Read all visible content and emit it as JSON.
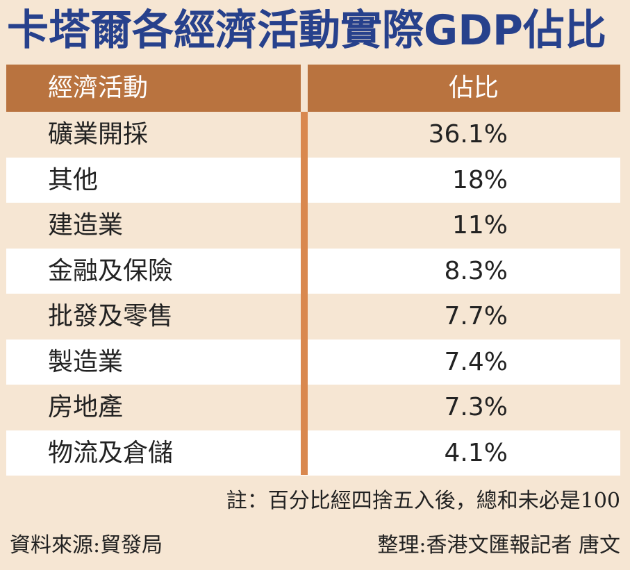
{
  "title": "卡塔爾各經濟活動實際GDP佔比",
  "table": {
    "headers": [
      "經濟活動",
      "佔比"
    ],
    "rows": [
      {
        "activity": "礦業開採",
        "share": "36.1%"
      },
      {
        "activity": "其他",
        "share": "18%"
      },
      {
        "activity": "建造業",
        "share": "11%"
      },
      {
        "activity": "金融及保險",
        "share": "8.3%"
      },
      {
        "activity": "批發及零售",
        "share": "7.7%"
      },
      {
        "activity": "製造業",
        "share": "7.4%"
      },
      {
        "activity": "房地產",
        "share": "7.3%"
      },
      {
        "activity": "物流及倉儲",
        "share": "4.1%"
      }
    ]
  },
  "note": "註：百分比經四捨五入後，總和未必是100",
  "source": "資料來源:貿發局",
  "editor": "整理:香港文匯報記者 唐文",
  "colors": {
    "title": "#27418c",
    "header_bg": "#b9733f",
    "divider": "#d9884f",
    "row_light": "#ffffff",
    "row_tan": "#f6e6d3"
  },
  "chart_data": {
    "type": "table",
    "title": "卡塔爾各經濟活動實際GDP佔比",
    "columns": [
      "經濟活動",
      "佔比"
    ],
    "categories": [
      "礦業開採",
      "其他",
      "建造業",
      "金融及保險",
      "批發及零售",
      "製造業",
      "房地產",
      "物流及倉儲"
    ],
    "values": [
      36.1,
      18,
      11,
      8.3,
      7.7,
      7.4,
      7.3,
      4.1
    ],
    "unit": "%"
  }
}
